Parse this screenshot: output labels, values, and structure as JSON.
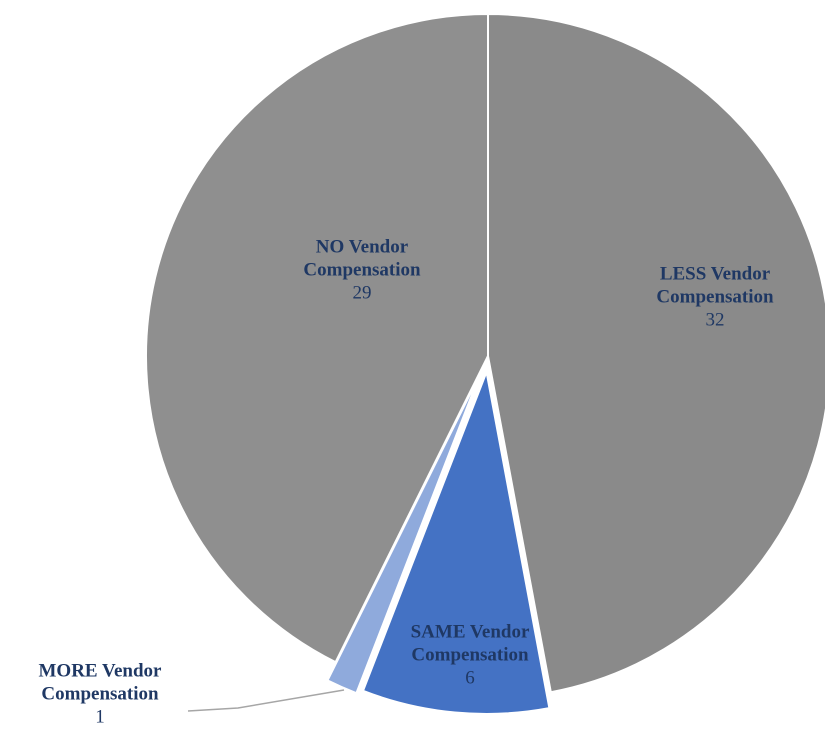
{
  "chart_data": {
    "type": "pie",
    "categories": [
      "LESS Vendor Compensation",
      "SAME Vendor Compensation",
      "MORE Vendor Compensation",
      "NO Vendor Compensation"
    ],
    "values": [
      32,
      6,
      1,
      29
    ],
    "colors": [
      "#8a8a8a",
      "#4472c4",
      "#8faadc",
      "#8f8f8f"
    ]
  }
}
